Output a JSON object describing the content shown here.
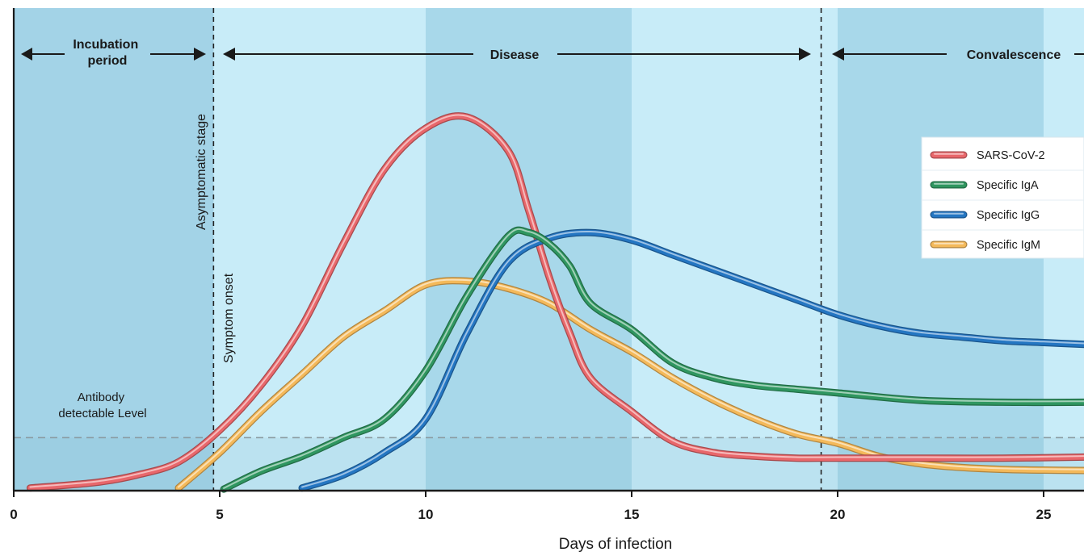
{
  "chart_data": {
    "type": "line",
    "xlabel": "Days of infection",
    "ylabel": "",
    "xlim": [
      0,
      26
    ],
    "ylim": [
      0,
      100
    ],
    "x_ticks": [
      0,
      5,
      10,
      15,
      20,
      25
    ],
    "grid": false,
    "legend_position": "top-right",
    "phases": [
      {
        "label": "Incubation period",
        "start": 0,
        "end": 4.85
      },
      {
        "label": "Disease",
        "start": 4.95,
        "end": 19.6
      },
      {
        "label": "Convalescence",
        "start": 19.6,
        "end": 26
      }
    ],
    "annotations": {
      "asymptomatic": "Asymptomatic stage",
      "symptom_onset": "Symptom onset",
      "antibody_level": "Antibody detectable Level"
    },
    "symptom_onset_day": 4.85,
    "convalescence_start_day": 19.6,
    "antibody_detectable_level": 14,
    "series": [
      {
        "name": "SARS-CoV-2",
        "color": "#e8676b",
        "values": [
          [
            0.4,
            0.5
          ],
          [
            2,
            2
          ],
          [
            3,
            4
          ],
          [
            4,
            7.5
          ],
          [
            5,
            16
          ],
          [
            6,
            28
          ],
          [
            7,
            44
          ],
          [
            8,
            66
          ],
          [
            9,
            86
          ],
          [
            10,
            97
          ],
          [
            11,
            100
          ],
          [
            12,
            91
          ],
          [
            12.5,
            75
          ],
          [
            13,
            57
          ],
          [
            13.5,
            42
          ],
          [
            14,
            30
          ],
          [
            15,
            21
          ],
          [
            16,
            13
          ],
          [
            17,
            10
          ],
          [
            18,
            9
          ],
          [
            19,
            8.5
          ],
          [
            20,
            8.5
          ],
          [
            22,
            8.5
          ],
          [
            24,
            8.5
          ],
          [
            26,
            8.8
          ]
        ]
      },
      {
        "name": "Specific IgA",
        "color": "#2f9660",
        "values": [
          [
            5.1,
            0.2
          ],
          [
            6,
            5
          ],
          [
            7,
            9
          ],
          [
            8,
            14
          ],
          [
            9,
            19
          ],
          [
            10,
            32
          ],
          [
            11,
            52
          ],
          [
            12,
            68
          ],
          [
            12.5,
            69
          ],
          [
            13,
            66
          ],
          [
            13.5,
            60
          ],
          [
            14,
            50
          ],
          [
            15,
            43
          ],
          [
            16,
            34
          ],
          [
            17,
            30
          ],
          [
            18,
            28
          ],
          [
            19,
            27
          ],
          [
            20,
            26
          ],
          [
            22,
            24
          ],
          [
            24,
            23.5
          ],
          [
            26,
            23.5
          ]
        ]
      },
      {
        "name": "Specific IgG",
        "color": "#2476c2",
        "values": [
          [
            7,
            0.5
          ],
          [
            8,
            4
          ],
          [
            9,
            10
          ],
          [
            10,
            19
          ],
          [
            11,
            42
          ],
          [
            12,
            61
          ],
          [
            13,
            67.5
          ],
          [
            14,
            69
          ],
          [
            15,
            67
          ],
          [
            16,
            63
          ],
          [
            17,
            59
          ],
          [
            18,
            55
          ],
          [
            19,
            51
          ],
          [
            20,
            47
          ],
          [
            21,
            44
          ],
          [
            22,
            42
          ],
          [
            23,
            41
          ],
          [
            24,
            40
          ],
          [
            25,
            39.5
          ],
          [
            26,
            39
          ]
        ]
      },
      {
        "name": "Specific IgM",
        "color": "#f4b95a",
        "values": [
          [
            4,
            0.5
          ],
          [
            5,
            10
          ],
          [
            6,
            21
          ],
          [
            7,
            31
          ],
          [
            8,
            41
          ],
          [
            9,
            48
          ],
          [
            10,
            55
          ],
          [
            11,
            56
          ],
          [
            12,
            54
          ],
          [
            13,
            50
          ],
          [
            14,
            43
          ],
          [
            15,
            37
          ],
          [
            16,
            30
          ],
          [
            17,
            24
          ],
          [
            18,
            19
          ],
          [
            19,
            15
          ],
          [
            20,
            12.5
          ],
          [
            21,
            9
          ],
          [
            22,
            7
          ],
          [
            23,
            6
          ],
          [
            24,
            5.5
          ],
          [
            25,
            5.3
          ],
          [
            26,
            5.2
          ]
        ]
      }
    ]
  }
}
